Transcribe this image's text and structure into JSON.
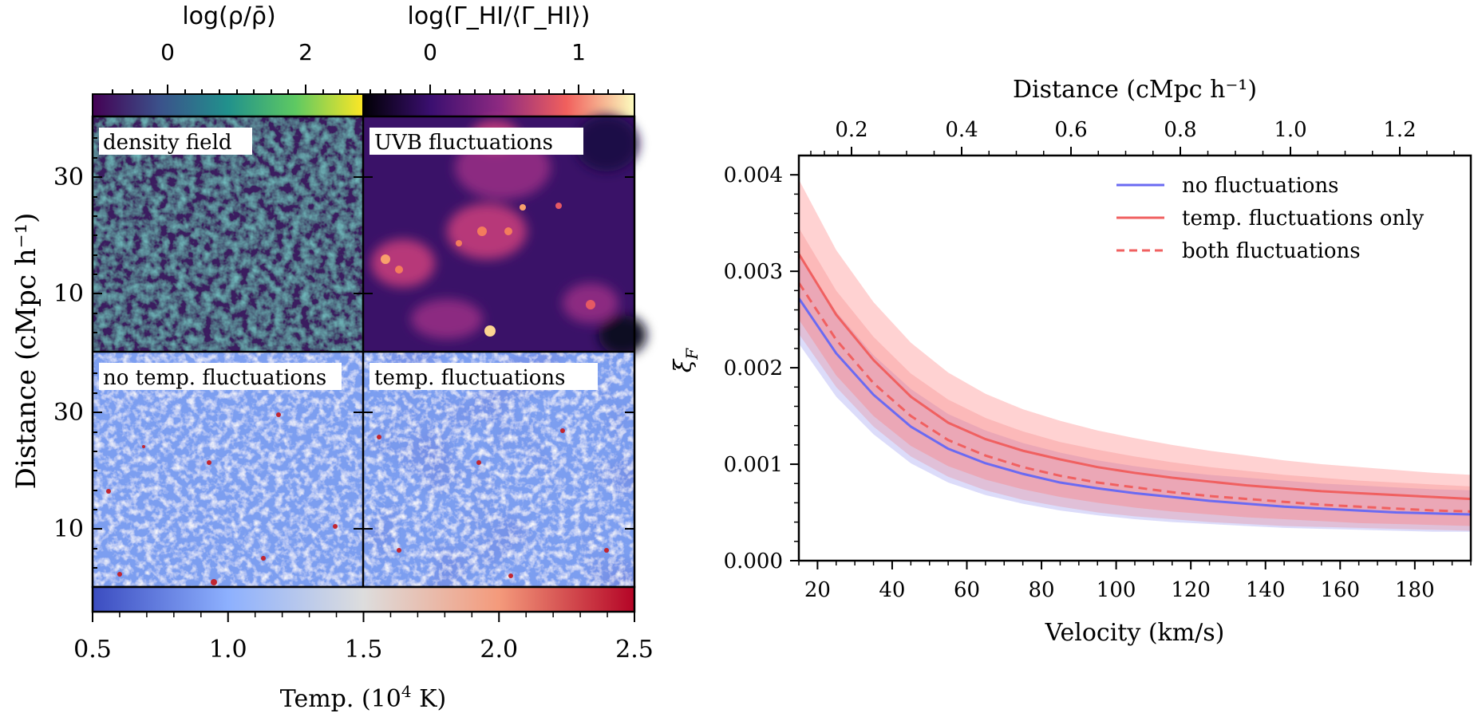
{
  "left_panel": {
    "density_colorbar": {
      "label": "log(ρ/ρ̄)",
      "ticks": [
        "0",
        "2"
      ],
      "colormap": "viridis"
    },
    "uvb_colorbar": {
      "label": "log(Γ_HI/⟨Γ_HI⟩)",
      "ticks": [
        "0",
        "1"
      ],
      "colormap": "magma"
    },
    "ylabel": "Distance (cMpc h⁻¹)",
    "yticks": [
      "30",
      "10"
    ],
    "maps": [
      {
        "label": "density field",
        "colormap": "viridis"
      },
      {
        "label": "UVB fluctuations",
        "colormap": "magma"
      },
      {
        "label": "no temp. fluctuations",
        "colormap": "coolwarm"
      },
      {
        "label": "temp. fluctuations",
        "colormap": "coolwarm"
      }
    ],
    "temp_colorbar": {
      "label_pre": "Temp. (10",
      "label_exp": "4",
      "label_post": " K)",
      "ticks": [
        "0.5",
        "1.0",
        "1.5",
        "2.0",
        "2.5"
      ],
      "range": [
        0.5,
        2.5
      ],
      "colormap": "coolwarm"
    }
  },
  "chart_data": {
    "type": "line",
    "xlabel": "Velocity (km/s)",
    "ylabel": "ξF",
    "top_xlabel": "Distance (cMpc h⁻¹)",
    "xlim": [
      15,
      195
    ],
    "ylim": [
      0,
      0.0042
    ],
    "xticks": [
      20,
      40,
      60,
      80,
      100,
      120,
      140,
      160,
      180
    ],
    "yticks": [
      "0.000",
      "0.001",
      "0.002",
      "0.003",
      "0.004"
    ],
    "top_xticks": [
      "0.2",
      "0.4",
      "0.6",
      "0.8",
      "1.0",
      "1.2"
    ],
    "legend_position": "top-right",
    "x": [
      15,
      25,
      35,
      45,
      55,
      65,
      75,
      85,
      95,
      105,
      115,
      125,
      135,
      145,
      155,
      165,
      175,
      185,
      195
    ],
    "series": [
      {
        "name": "no fluctuations",
        "color": "#6a6af2",
        "style": "solid",
        "values": [
          0.00272,
          0.00215,
          0.00172,
          0.00139,
          0.00116,
          0.00101,
          0.0009,
          0.00081,
          0.00075,
          0.0007,
          0.00066,
          0.00062,
          0.00059,
          0.00056,
          0.00054,
          0.00052,
          0.0005,
          0.00049,
          0.00048
        ],
        "band_low": [
          0.00225,
          0.0017,
          0.00131,
          0.00101,
          0.00081,
          0.00068,
          0.00059,
          0.00052,
          0.00047,
          0.00043,
          0.0004,
          0.00038,
          0.00036,
          0.00034,
          0.00033,
          0.00032,
          0.00031,
          0.0003,
          0.0003
        ],
        "band_high": [
          0.00318,
          0.00258,
          0.00213,
          0.00178,
          0.00152,
          0.00135,
          0.00122,
          0.00112,
          0.00104,
          0.00098,
          0.00093,
          0.00089,
          0.00086,
          0.00083,
          0.0008,
          0.00078,
          0.00076,
          0.00074,
          0.00073
        ]
      },
      {
        "name": "temp. fluctuations only",
        "color": "#f06060",
        "style": "solid",
        "values": [
          0.00318,
          0.00255,
          0.00208,
          0.0017,
          0.00143,
          0.00126,
          0.00114,
          0.00105,
          0.00097,
          0.00091,
          0.00086,
          0.00082,
          0.00078,
          0.00075,
          0.00072,
          0.0007,
          0.00068,
          0.00066,
          0.00064
        ],
        "band_low": [
          0.0025,
          0.00192,
          0.0015,
          0.00119,
          0.00098,
          0.00084,
          0.00074,
          0.00066,
          0.0006,
          0.00055,
          0.00051,
          0.00048,
          0.00045,
          0.00043,
          0.00041,
          0.00039,
          0.00038,
          0.00037,
          0.00036
        ],
        "band_high": [
          0.00395,
          0.00322,
          0.00268,
          0.00226,
          0.00195,
          0.00173,
          0.00157,
          0.00145,
          0.00135,
          0.00127,
          0.0012,
          0.00114,
          0.00109,
          0.00104,
          0.001,
          0.00097,
          0.00094,
          0.00091,
          0.00089
        ]
      },
      {
        "name": "both fluctuations",
        "color": "#f06060",
        "style": "dashed",
        "values": [
          0.00288,
          0.00229,
          0.00184,
          0.0015,
          0.00125,
          0.00109,
          0.00097,
          0.00088,
          0.00081,
          0.00076,
          0.00071,
          0.00067,
          0.00064,
          0.00061,
          0.00058,
          0.00056,
          0.00054,
          0.00052,
          0.00051
        ],
        "band_low": [
          0.00235,
          0.0018,
          0.00139,
          0.00108,
          0.00087,
          0.00073,
          0.00063,
          0.00056,
          0.0005,
          0.00046,
          0.00043,
          0.0004,
          0.00038,
          0.00036,
          0.00035,
          0.00034,
          0.00033,
          0.00032,
          0.00031
        ],
        "band_high": [
          0.00345,
          0.0028,
          0.00232,
          0.00194,
          0.00167,
          0.00148,
          0.00134,
          0.00123,
          0.00115,
          0.00108,
          0.00102,
          0.00097,
          0.00093,
          0.00089,
          0.00086,
          0.00083,
          0.00081,
          0.00079,
          0.00077
        ]
      }
    ]
  }
}
